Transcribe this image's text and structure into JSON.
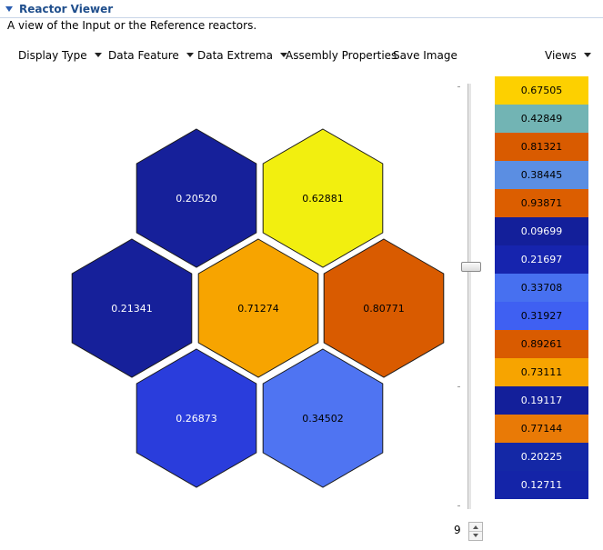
{
  "panel": {
    "title": "Reactor Viewer",
    "subtitle": "A view of the Input or the Reference reactors."
  },
  "toolbar": {
    "display_type": "Display Type",
    "data_feature": "Data Feature",
    "data_extrema": "Data Extrema",
    "assembly_properties": "Assembly Properties",
    "save_image": "Save Image",
    "views": "Views"
  },
  "hexes": [
    {
      "value": "0.20520",
      "color": "#16209a",
      "text_color": "#ffffff"
    },
    {
      "value": "0.62881",
      "color": "#f2ef0f",
      "text_color": "#000000"
    },
    {
      "value": "0.21341",
      "color": "#16209a",
      "text_color": "#ffffff"
    },
    {
      "value": "0.71274",
      "color": "#f7a400",
      "text_color": "#000000"
    },
    {
      "value": "0.80771",
      "color": "#d95b00",
      "text_color": "#000000"
    },
    {
      "value": "0.26873",
      "color": "#2a3ddc",
      "text_color": "#ffffff"
    },
    {
      "value": "0.34502",
      "color": "#4f74f2",
      "text_color": "#000000"
    }
  ],
  "slider": {
    "value": "9"
  },
  "legend": [
    {
      "value": "0.67505",
      "color": "#fdd000",
      "text_color": "#000000"
    },
    {
      "value": "0.42849",
      "color": "#72b4b4",
      "text_color": "#000000"
    },
    {
      "value": "0.81321",
      "color": "#d95b00",
      "text_color": "#000000"
    },
    {
      "value": "0.38445",
      "color": "#5b8ee2",
      "text_color": "#000000"
    },
    {
      "value": "0.93871",
      "color": "#dc5e00",
      "text_color": "#000000"
    },
    {
      "value": "0.09699",
      "color": "#131f9a",
      "text_color": "#ffffff"
    },
    {
      "value": "0.21697",
      "color": "#1624ae",
      "text_color": "#ffffff"
    },
    {
      "value": "0.33708",
      "color": "#4770f0",
      "text_color": "#000000"
    },
    {
      "value": "0.31927",
      "color": "#3f60f2",
      "text_color": "#000000"
    },
    {
      "value": "0.89261",
      "color": "#d95b00",
      "text_color": "#000000"
    },
    {
      "value": "0.73111",
      "color": "#f7a400",
      "text_color": "#000000"
    },
    {
      "value": "0.19117",
      "color": "#131f9a",
      "text_color": "#ffffff"
    },
    {
      "value": "0.77144",
      "color": "#e97a06",
      "text_color": "#000000"
    },
    {
      "value": "0.20225",
      "color": "#1428a6",
      "text_color": "#ffffff"
    },
    {
      "value": "0.12711",
      "color": "#1424a8",
      "text_color": "#ffffff"
    }
  ]
}
